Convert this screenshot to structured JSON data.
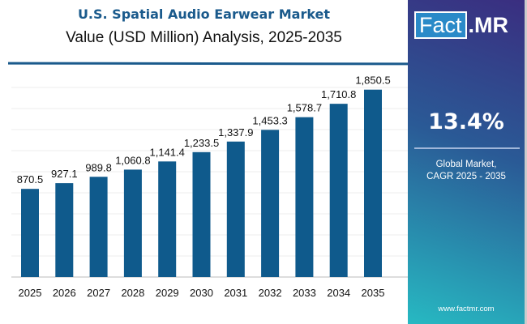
{
  "chart_data": {
    "type": "bar",
    "title": "U.S. Spatial Audio Earwear Market",
    "subtitle": "Value (USD Million) Analysis, 2025-2035",
    "categories": [
      "2025",
      "2026",
      "2027",
      "2028",
      "2029",
      "2030",
      "2031",
      "2032",
      "2033",
      "2034",
      "2035"
    ],
    "values": [
      870.5,
      927.1,
      989.8,
      1060.8,
      1141.4,
      1233.5,
      1337.9,
      1453.3,
      1578.7,
      1710.8,
      1850.5
    ],
    "value_labels": [
      "870.5",
      "927.1",
      "989.8",
      "1,060.8",
      "1,141.4",
      "1,233.5",
      "1,337.9",
      "1,453.3",
      "1,578.7",
      "1,710.8",
      "1,850.5"
    ],
    "ylim": [
      0,
      2000
    ],
    "grid": true,
    "bar_color": "#0f5a8c"
  },
  "sidebar": {
    "logo": {
      "part1": "Fact",
      "part2": ".MR"
    },
    "cagr": "13.4%",
    "label_line1": "Global Market,",
    "label_line2": "CAGR 2025 - 2035",
    "url": "www.factmr.com"
  }
}
